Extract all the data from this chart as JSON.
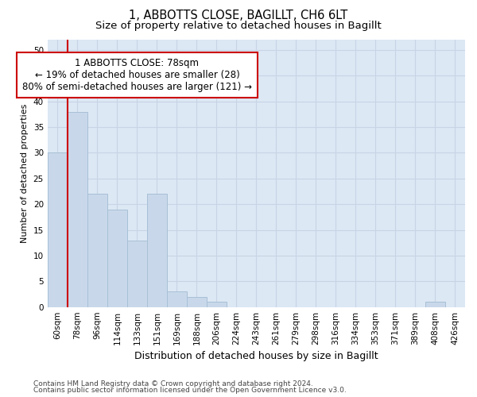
{
  "title_line1": "1, ABBOTTS CLOSE, BAGILLT, CH6 6LT",
  "title_line2": "Size of property relative to detached houses in Bagillt",
  "xlabel": "Distribution of detached houses by size in Bagillt",
  "ylabel": "Number of detached properties",
  "footer_line1": "Contains HM Land Registry data © Crown copyright and database right 2024.",
  "footer_line2": "Contains public sector information licensed under the Open Government Licence v3.0.",
  "categories": [
    "60sqm",
    "78sqm",
    "96sqm",
    "114sqm",
    "133sqm",
    "151sqm",
    "169sqm",
    "188sqm",
    "206sqm",
    "224sqm",
    "243sqm",
    "261sqm",
    "279sqm",
    "298sqm",
    "316sqm",
    "334sqm",
    "353sqm",
    "371sqm",
    "389sqm",
    "408sqm",
    "426sqm"
  ],
  "values": [
    30,
    38,
    22,
    19,
    13,
    22,
    3,
    2,
    1,
    0,
    0,
    0,
    0,
    0,
    0,
    0,
    0,
    0,
    0,
    1,
    0
  ],
  "bar_color": "#c8d8ea",
  "bar_edge_color": "#a8c0d6",
  "property_index": 1,
  "annotation_line1": "1 ABBOTTS CLOSE: 78sqm",
  "annotation_line2": "← 19% of detached houses are smaller (28)",
  "annotation_line3": "80% of semi-detached houses are larger (121) →",
  "vline_color": "#cc0000",
  "annotation_box_edgecolor": "#cc0000",
  "ylim": [
    0,
    52
  ],
  "yticks": [
    0,
    5,
    10,
    15,
    20,
    25,
    30,
    35,
    40,
    45,
    50
  ],
  "grid_color": "#c8d4e4",
  "background_color": "#dce8f4",
  "title_fontsize": 10.5,
  "subtitle_fontsize": 9.5,
  "annotation_fontsize": 8.5,
  "ylabel_fontsize": 8,
  "xlabel_fontsize": 9,
  "tick_fontsize": 7.5,
  "footer_fontsize": 6.5
}
